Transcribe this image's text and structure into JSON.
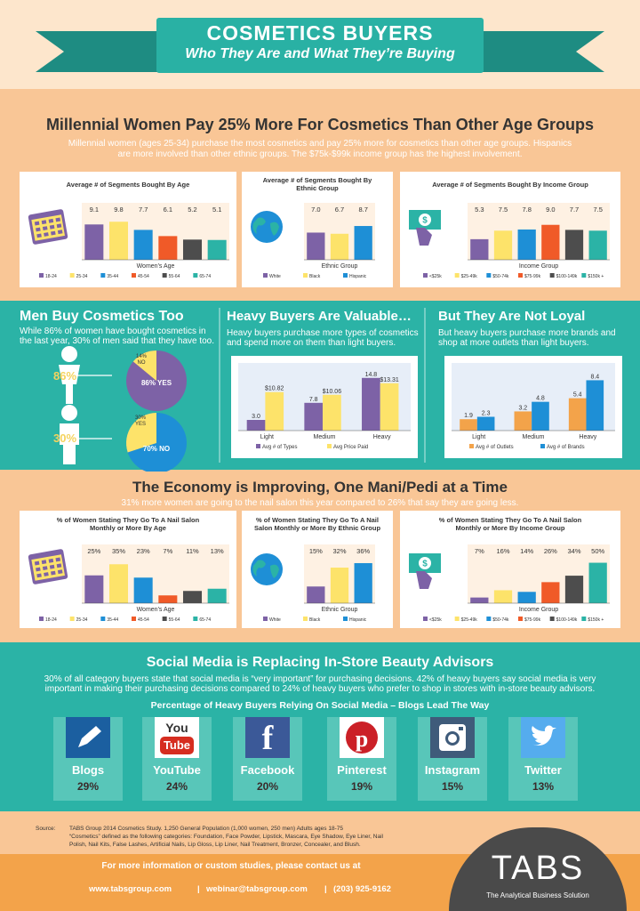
{
  "header": {
    "title": "COSMETICS BUYERS",
    "subtitle": "Who They Are and What They’re Buying"
  },
  "section1": {
    "heading": "Millennial Women Pay 25% More For Cosmetics Than Other Age Groups",
    "text1": "Millennial women (ages 25-34) purchase the most cosmetics and pay 25% more for cosmetics than other age groups. Hispanics",
    "text2": "are more involved than other ethnic groups. The $75k-$99k income group has the highest involvement."
  },
  "section2": {
    "men_title": "Men Buy Cosmetics Too",
    "men_text1": "While 86% of women have bought cosmetics in",
    "men_text2": "the last year, 30% of men said that they have too.",
    "women_pct": "86%",
    "men_pct": "30%",
    "pie1_yes": "86% YES",
    "pie1_no": "14% NO",
    "pie2_yes": "30% YES",
    "pie2_no": "70% NO",
    "heavy_title": "Heavy Buyers Are Valuable…",
    "heavy_text1": "Heavy buyers purchase more types of cosmetics",
    "heavy_text2": "and spend more on them than light buyers.",
    "loyal_title": "But They Are Not Loyal",
    "loyal_text1": "But heavy buyers purchase more brands and",
    "loyal_text2": "shop at more outlets than light buyers."
  },
  "section3": {
    "heading": "The Economy is Improving, One Mani/Pedi at a Time",
    "text": "31% more women are going to the nail salon this year compared to 26% that say they are going less."
  },
  "section4": {
    "heading": "Social Media is Replacing In-Store Beauty Advisors",
    "text1": "30% of all category buyers state that social media is “very important” for purchasing decisions. 42% of heavy buyers say social media is very",
    "text2": "important in making their purchasing decisions compared to 24% of heavy buyers who prefer to shop in stores with in-store beauty advisors.",
    "subheading": "Percentage of Heavy Buyers Relying On Social Media – Blogs Lead The Way",
    "items": [
      {
        "name": "Blogs",
        "pct": "29%",
        "icon": "pen-icon"
      },
      {
        "name": "YouTube",
        "pct": "24%",
        "icon": "youtube-icon"
      },
      {
        "name": "Facebook",
        "pct": "20%",
        "icon": "facebook-icon"
      },
      {
        "name": "Pinterest",
        "pct": "19%",
        "icon": "pinterest-icon"
      },
      {
        "name": "Instagram",
        "pct": "15%",
        "icon": "instagram-icon"
      },
      {
        "name": "Twitter",
        "pct": "13%",
        "icon": "twitter-icon"
      }
    ]
  },
  "footer": {
    "source_label": "Source:",
    "source1": "TABS Group 2014 Cosmetics Study. 1,250 General Population (1,000 women, 250 men) Adults ages 18-75",
    "source2": "“Cosmetics” defined as the following categories: Foundation, Face Powder, Lipstick, Mascara, Eye Shadow, Eye Liner, Nail",
    "source3": "Polish, Nail Kits, False Lashes, Artificial Nails, Lip Gloss, Lip Liner, Nail Treatment, Bronzer, Concealer, and Blush.",
    "contact": "For more information or custom studies, please contact us at",
    "website": "www.tabsgroup.com",
    "email": "webinar@tabsgroup.com",
    "phone": "(203) 925-9162",
    "logo": "TABS",
    "tagline": "The Analytical Business Solution"
  },
  "colors": {
    "teal": "#2bb3a6",
    "orange": "#f9c696",
    "purple": "#7d62a6",
    "yellow": "#fde36a",
    "blue": "#1e8fd6",
    "red": "#f05a28",
    "gray": "#4d4d4d",
    "green": "#2bb3a6"
  },
  "chart_data": [
    {
      "type": "bar",
      "title": "Average # of Segments Bought By Age",
      "xlabel": "Women's Age",
      "categories": [
        "18-24",
        "25-34",
        "35-44",
        "45-54",
        "55-64",
        "65-74"
      ],
      "values": [
        9.1,
        9.8,
        7.7,
        6.1,
        5.2,
        5.1
      ],
      "labels": [
        "9.1",
        "9.8",
        "7.7",
        "6.1",
        "5.2",
        "5.1"
      ]
    },
    {
      "type": "bar",
      "title": "Average # of Segments Bought By Ethnic Group",
      "xlabel": "Ethnic Group",
      "categories": [
        "White",
        "Black",
        "Hispanic"
      ],
      "values": [
        7.0,
        6.7,
        8.7
      ],
      "labels": [
        "7.0",
        "6.7",
        "8.7"
      ]
    },
    {
      "type": "bar",
      "title": "Average # of Segments Bought By Income Group",
      "xlabel": "Income Group",
      "categories": [
        "<$25k",
        "$25-49k",
        "$50-74k",
        "$75-99k",
        "$100-149k",
        "$150k +"
      ],
      "values": [
        5.3,
        7.5,
        7.8,
        9.0,
        7.7,
        7.5
      ],
      "labels": [
        "5.3",
        "7.5",
        "7.8",
        "9.0",
        "7.7",
        "7.5"
      ]
    },
    {
      "type": "bar",
      "title": "",
      "categories": [
        "Light",
        "Medium",
        "Heavy"
      ],
      "series": [
        {
          "name": "Avg # of Types",
          "values": [
            3.0,
            7.8,
            14.8
          ],
          "labels": [
            "3.0",
            "7.8",
            "14.8"
          ]
        },
        {
          "name": "Avg Price Paid",
          "values": [
            10.82,
            10.06,
            13.31
          ],
          "labels": [
            "$10.82",
            "$10.06",
            "$13.31"
          ]
        }
      ]
    },
    {
      "type": "bar",
      "title": "",
      "categories": [
        "Light",
        "Medium",
        "Heavy"
      ],
      "series": [
        {
          "name": "Avg # of Outlets",
          "values": [
            1.9,
            3.2,
            5.4
          ],
          "labels": [
            "1.9",
            "3.2",
            "5.4"
          ]
        },
        {
          "name": "Avg # of Brands",
          "values": [
            2.3,
            4.8,
            8.4
          ],
          "labels": [
            "2.3",
            "4.8",
            "8.4"
          ]
        }
      ]
    },
    {
      "type": "bar",
      "title": "% of Women Stating They Go To A Nail Salon Monthly or More By Age",
      "xlabel": "Women's Age",
      "categories": [
        "18-24",
        "25-34",
        "35-44",
        "45-54",
        "55-64",
        "65-74"
      ],
      "values": [
        25,
        35,
        23,
        7,
        11,
        13
      ],
      "labels": [
        "25%",
        "35%",
        "23%",
        "7%",
        "11%",
        "13%"
      ]
    },
    {
      "type": "bar",
      "title": "% of Women Stating They Go To A Nail Salon Monthly or More By Ethnic Group",
      "xlabel": "Ethnic Group",
      "categories": [
        "White",
        "Black",
        "Hispanic"
      ],
      "values": [
        15,
        32,
        36
      ],
      "labels": [
        "15%",
        "32%",
        "36%"
      ]
    },
    {
      "type": "bar",
      "title": "% of Women Stating They Go To A Nail Salon Monthly or More By Income Group",
      "xlabel": "Income Group",
      "categories": [
        "<$25k",
        "$25-49k",
        "$50-74k",
        "$75-99k",
        "$100-149k",
        "$150k +"
      ],
      "values": [
        7,
        16,
        14,
        26,
        34,
        50
      ],
      "labels": [
        "7%",
        "16%",
        "14%",
        "26%",
        "34%",
        "50%"
      ]
    },
    {
      "type": "pie",
      "title": "",
      "categories": [
        "YES",
        "NO"
      ],
      "values": [
        86,
        14
      ]
    },
    {
      "type": "pie",
      "title": "",
      "categories": [
        "YES",
        "NO"
      ],
      "values": [
        30,
        70
      ]
    }
  ]
}
